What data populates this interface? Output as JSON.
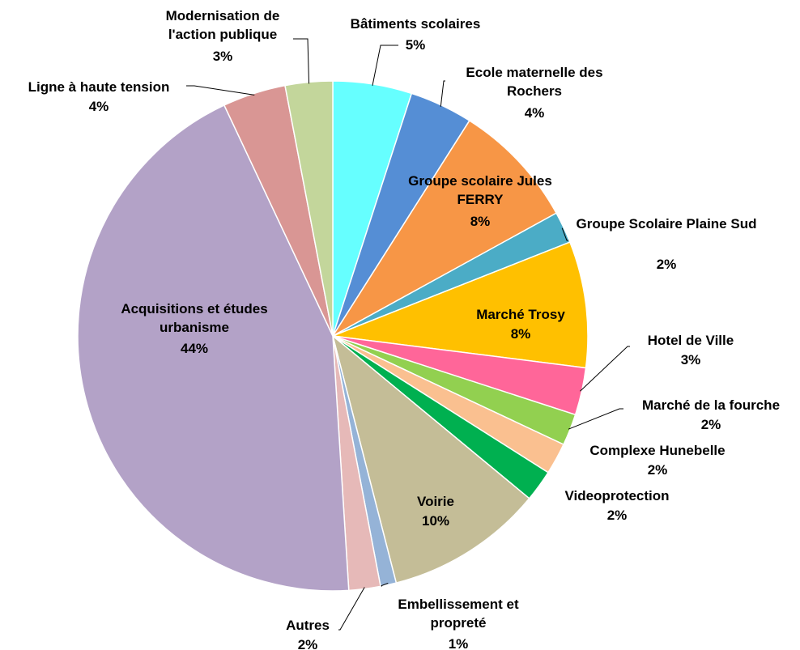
{
  "chart_data": {
    "type": "pie",
    "categories": [
      "Bâtiments scolaires",
      "Ecole maternelle des Rochers",
      "Groupe scolaire Jules FERRY",
      "Groupe Scolaire Plaine Sud",
      "Marché Trosy",
      "Hotel de Ville",
      "Marché de la fourche",
      "Complexe Hunebelle",
      "Videoprotection",
      "Voirie",
      "Embellissement et propreté",
      "Autres",
      "Acquisitions et études urbanisme",
      "Ligne à haute tension",
      "Modernisation de l'action publique"
    ],
    "values": [
      5,
      4,
      8,
      2,
      8,
      3,
      2,
      2,
      2,
      10,
      1,
      2,
      44,
      4,
      3
    ],
    "value_labels": [
      "5%",
      "4%",
      "8%",
      "2%",
      "8%",
      "3%",
      "2%",
      "2%",
      "2%",
      "10%",
      "1%",
      "2%",
      "44%",
      "4%",
      "3%"
    ],
    "colors": [
      "#66FFFF",
      "#558ED5",
      "#F79646",
      "#4BACC6",
      "#FFC000",
      "#FF6699",
      "#92D050",
      "#FAC090",
      "#00B050",
      "#C4BD97",
      "#95B3D7",
      "#E6B9B8",
      "#B3A2C7",
      "#D99694",
      "#C3D69B"
    ]
  }
}
